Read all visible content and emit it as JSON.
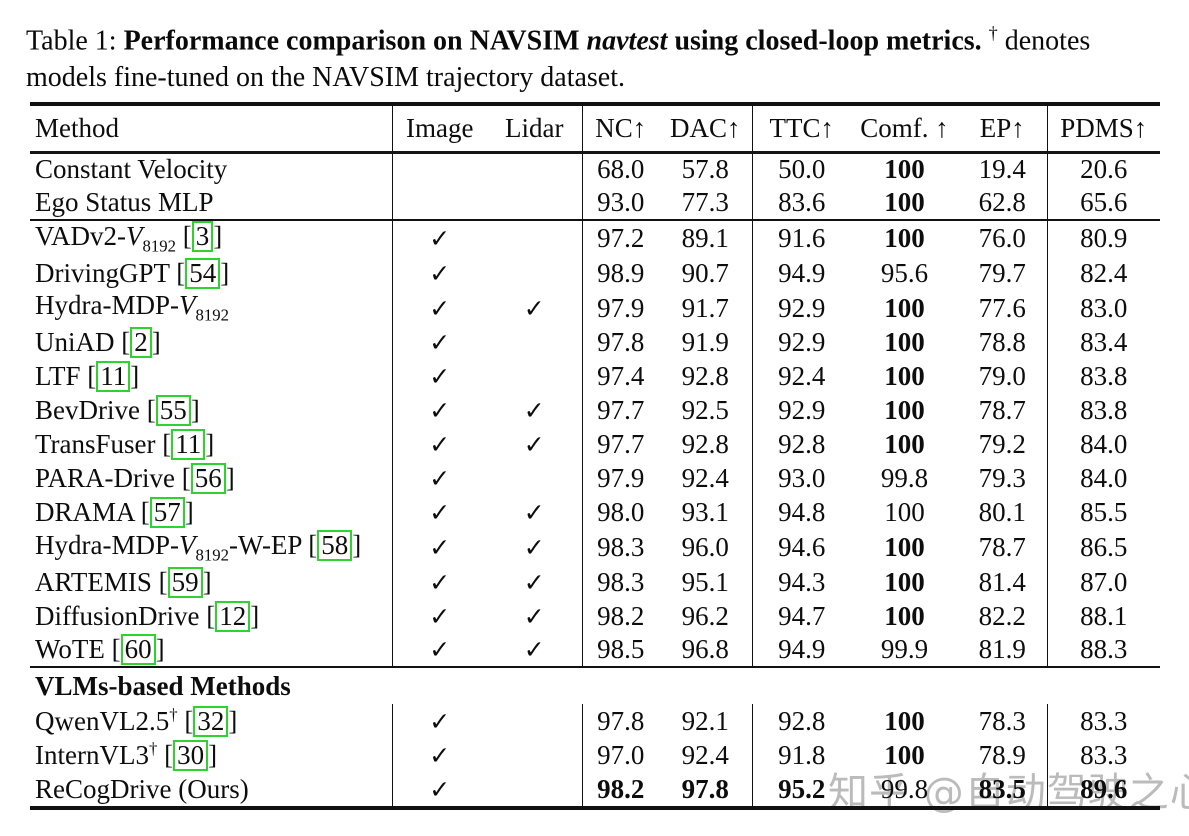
{
  "caption": {
    "label": "Table 1: ",
    "bold_before": "Performance comparison on NAVSIM ",
    "italic": "navtest",
    "bold_after": " using closed-loop metrics.",
    "dagger": "†",
    "rest": " denotes models fine-tuned on the NAVSIM trajectory dataset."
  },
  "watermark": "知乎 @自动驾驶之心",
  "colors": {
    "citation_green": "#2fd32f",
    "watermark_gray": "#b0b0b0"
  },
  "table": {
    "check_glyph": "✓",
    "headers": [
      "Method",
      "Image",
      "Lidar",
      "NC↑",
      "DAC↑",
      "TTC↑",
      "Comf. ↑",
      "EP↑",
      "PDMS↑"
    ],
    "groups": [
      {
        "rows": [
          {
            "method": [
              {
                "t": "text",
                "v": "Constant Velocity"
              }
            ],
            "image": false,
            "lidar": false,
            "vals": [
              "68.0",
              "57.8",
              "50.0",
              "100",
              "19.4",
              "20.6"
            ],
            "bold": [
              3
            ]
          },
          {
            "method": [
              {
                "t": "text",
                "v": "Ego Status MLP"
              }
            ],
            "image": false,
            "lidar": false,
            "vals": [
              "93.0",
              "77.3",
              "83.6",
              "100",
              "62.8",
              "65.6"
            ],
            "bold": [
              3
            ]
          }
        ]
      },
      {
        "rows": [
          {
            "method": [
              {
                "t": "text",
                "v": "VADv2-"
              },
              {
                "t": "cal",
                "v": "V"
              },
              {
                "t": "sub",
                "v": "8192"
              },
              {
                "t": "text",
                "v": " "
              },
              {
                "t": "cite",
                "v": "3"
              }
            ],
            "image": true,
            "lidar": false,
            "vals": [
              "97.2",
              "89.1",
              "91.6",
              "100",
              "76.0",
              "80.9"
            ],
            "bold": [
              3
            ]
          },
          {
            "method": [
              {
                "t": "text",
                "v": "DrivingGPT "
              },
              {
                "t": "cite",
                "v": "54"
              }
            ],
            "image": true,
            "lidar": false,
            "vals": [
              "98.9",
              "90.7",
              "94.9",
              "95.6",
              "79.7",
              "82.4"
            ],
            "bold": []
          },
          {
            "method": [
              {
                "t": "text",
                "v": "Hydra-MDP-"
              },
              {
                "t": "cal",
                "v": "V"
              },
              {
                "t": "sub",
                "v": "8192"
              }
            ],
            "image": true,
            "lidar": true,
            "vals": [
              "97.9",
              "91.7",
              "92.9",
              "100",
              "77.6",
              "83.0"
            ],
            "bold": [
              3
            ]
          },
          {
            "method": [
              {
                "t": "text",
                "v": "UniAD "
              },
              {
                "t": "cite",
                "v": "2"
              }
            ],
            "image": true,
            "lidar": false,
            "vals": [
              "97.8",
              "91.9",
              "92.9",
              "100",
              "78.8",
              "83.4"
            ],
            "bold": [
              3
            ]
          },
          {
            "method": [
              {
                "t": "text",
                "v": "LTF "
              },
              {
                "t": "cite",
                "v": "11"
              }
            ],
            "image": true,
            "lidar": false,
            "vals": [
              "97.4",
              "92.8",
              "92.4",
              "100",
              "79.0",
              "83.8"
            ],
            "bold": [
              3
            ]
          },
          {
            "method": [
              {
                "t": "text",
                "v": "BevDrive "
              },
              {
                "t": "cite",
                "v": "55"
              }
            ],
            "image": true,
            "lidar": true,
            "vals": [
              "97.7",
              "92.5",
              "92.9",
              "100",
              "78.7",
              "83.8"
            ],
            "bold": [
              3
            ]
          },
          {
            "method": [
              {
                "t": "text",
                "v": "TransFuser "
              },
              {
                "t": "cite",
                "v": "11"
              }
            ],
            "image": true,
            "lidar": true,
            "vals": [
              "97.7",
              "92.8",
              "92.8",
              "100",
              "79.2",
              "84.0"
            ],
            "bold": [
              3
            ]
          },
          {
            "method": [
              {
                "t": "text",
                "v": "PARA-Drive "
              },
              {
                "t": "cite",
                "v": "56"
              }
            ],
            "image": true,
            "lidar": false,
            "vals": [
              "97.9",
              "92.4",
              "93.0",
              "99.8",
              "79.3",
              "84.0"
            ],
            "bold": []
          },
          {
            "method": [
              {
                "t": "text",
                "v": "DRAMA  "
              },
              {
                "t": "cite",
                "v": "57"
              }
            ],
            "image": true,
            "lidar": true,
            "vals": [
              "98.0",
              "93.1",
              "94.8",
              "100",
              "80.1",
              "85.5"
            ],
            "bold": []
          },
          {
            "method": [
              {
                "t": "text",
                "v": "Hydra-MDP-"
              },
              {
                "t": "cal",
                "v": "V"
              },
              {
                "t": "sub",
                "v": "8192"
              },
              {
                "t": "text",
                "v": "-W-EP "
              },
              {
                "t": "cite",
                "v": "58"
              }
            ],
            "image": true,
            "lidar": true,
            "vals": [
              "98.3",
              "96.0",
              "94.6",
              "100",
              "78.7",
              "86.5"
            ],
            "bold": [
              3
            ]
          },
          {
            "method": [
              {
                "t": "text",
                "v": "ARTEMIS "
              },
              {
                "t": "cite",
                "v": "59"
              }
            ],
            "image": true,
            "lidar": true,
            "vals": [
              "98.3",
              "95.1",
              "94.3",
              "100",
              "81.4",
              "87.0"
            ],
            "bold": [
              3
            ]
          },
          {
            "method": [
              {
                "t": "text",
                "v": "DiffusionDrive "
              },
              {
                "t": "cite",
                "v": "12"
              }
            ],
            "image": true,
            "lidar": true,
            "vals": [
              "98.2",
              "96.2",
              "94.7",
              "100",
              "82.2",
              "88.1"
            ],
            "bold": [
              3
            ]
          },
          {
            "method": [
              {
                "t": "text",
                "v": "WoTE "
              },
              {
                "t": "cite",
                "v": "60"
              }
            ],
            "image": true,
            "lidar": true,
            "vals": [
              "98.5",
              "96.8",
              "94.9",
              "99.9",
              "81.9",
              "88.3"
            ],
            "bold": []
          }
        ]
      },
      {
        "section": "VLMs-based Methods",
        "rows": [
          {
            "method": [
              {
                "t": "text",
                "v": "QwenVL2.5"
              },
              {
                "t": "sup",
                "v": "†"
              },
              {
                "t": "text",
                "v": " "
              },
              {
                "t": "cite",
                "v": "32"
              }
            ],
            "image": true,
            "lidar": false,
            "vals": [
              "97.8",
              "92.1",
              "92.8",
              "100",
              "78.3",
              "83.3"
            ],
            "bold": [
              3
            ]
          },
          {
            "method": [
              {
                "t": "text",
                "v": "InternVL3"
              },
              {
                "t": "sup",
                "v": "†"
              },
              {
                "t": "text",
                "v": " "
              },
              {
                "t": "cite",
                "v": "30"
              }
            ],
            "image": true,
            "lidar": false,
            "vals": [
              "97.0",
              "92.4",
              "91.8",
              "100",
              "78.9",
              "83.3"
            ],
            "bold": [
              3
            ]
          },
          {
            "method": [
              {
                "t": "text",
                "v": "ReCogDrive (Ours)"
              }
            ],
            "image": true,
            "lidar": false,
            "vals": [
              "98.2",
              "97.8",
              "95.2",
              "99.8",
              "83.5",
              "89.6"
            ],
            "bold": [
              0,
              1,
              2,
              4,
              5
            ]
          }
        ]
      }
    ]
  }
}
